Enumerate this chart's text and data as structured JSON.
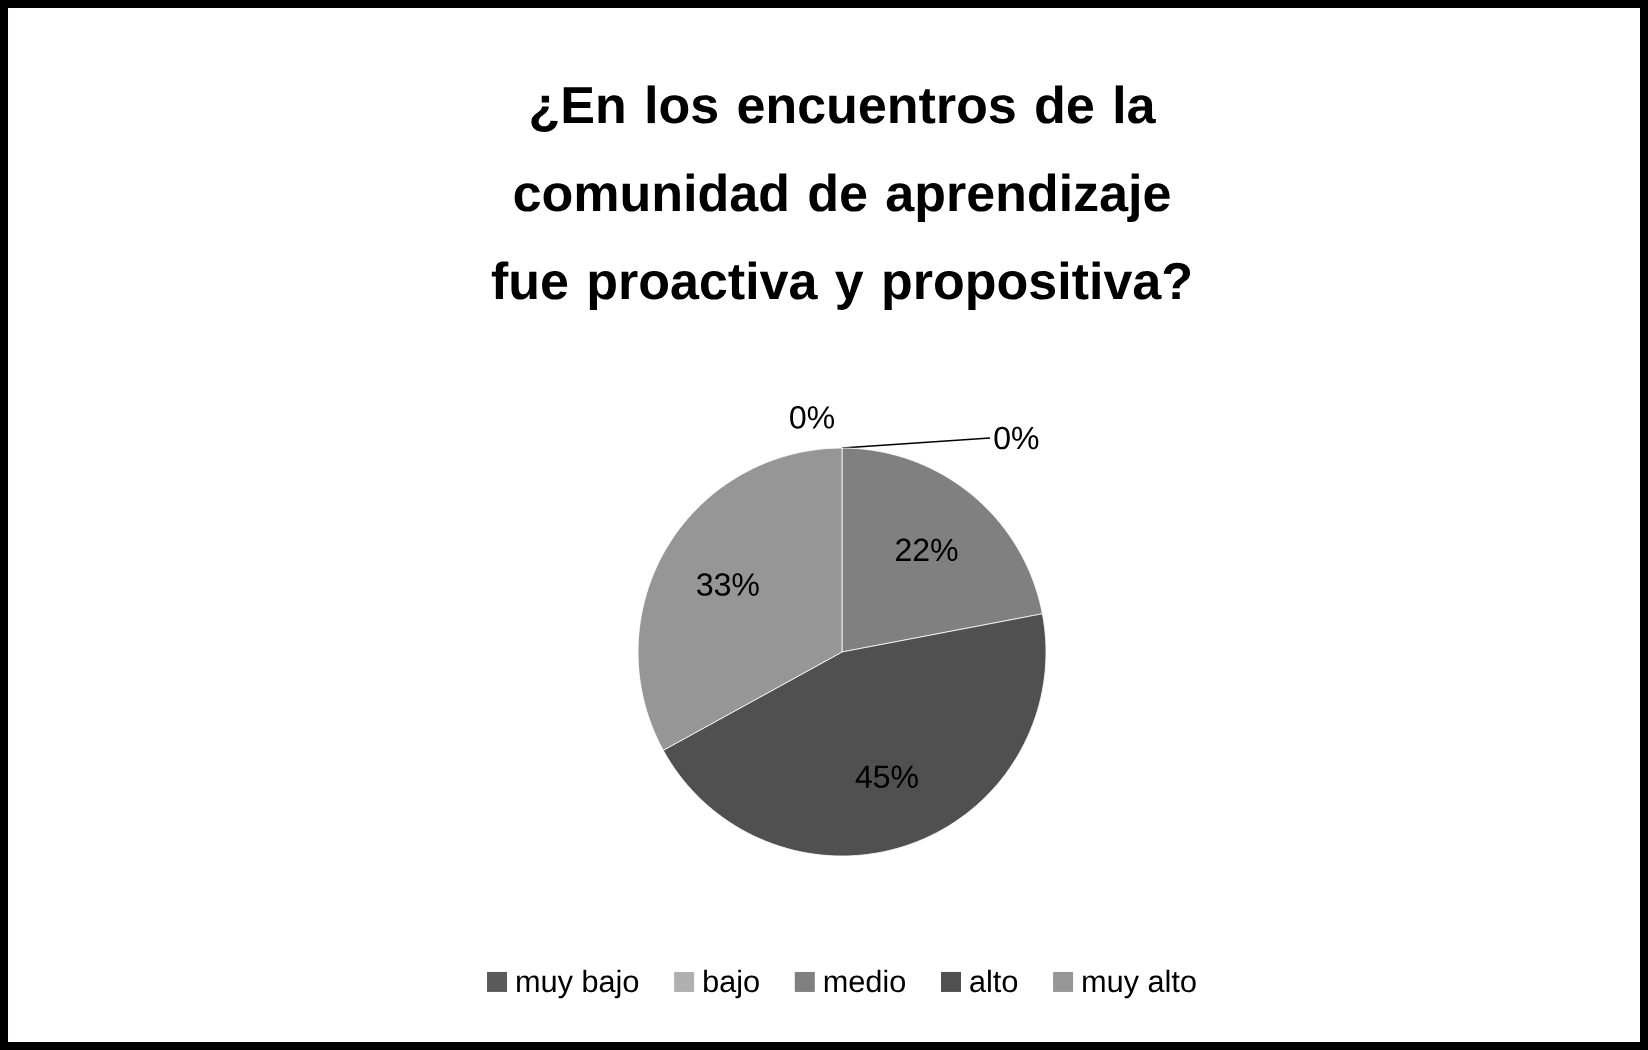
{
  "chart_data": {
    "type": "pie",
    "title": "¿En los encuentros de la comunidad de aprendizaje fue proactiva y propositiva?",
    "categories": [
      "muy bajo",
      "bajo",
      "medio",
      "alto",
      "muy alto"
    ],
    "values": [
      0,
      0,
      22,
      45,
      33
    ],
    "colors": [
      "#5a5a5a",
      "#b0b0b0",
      "#808080",
      "#505050",
      "#969696"
    ],
    "value_labels": [
      "0%",
      "0%",
      "22%",
      "45%",
      "33%"
    ],
    "legend": "bottom"
  }
}
